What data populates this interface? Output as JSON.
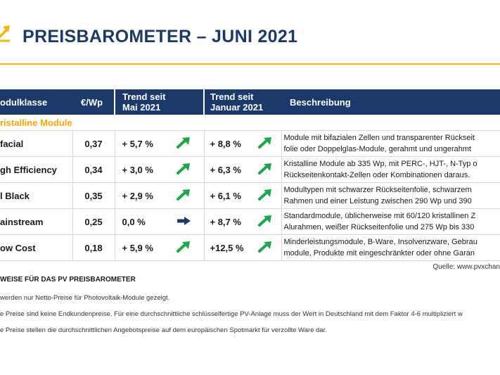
{
  "header": {
    "title": "PREISBAROMETER –  JUNI 2021"
  },
  "table": {
    "columns": {
      "module": "odulklasse",
      "price": "€/Wp",
      "trend_may": "Trend seit\nMai 2021",
      "trend_jan": "Trend seit\nJanuar 2021",
      "desc": "Beschreibung"
    },
    "group_label": "ristalline Module",
    "rows": [
      {
        "name": "facial",
        "price": "0,37",
        "may": "+ 5,7 %",
        "may_dir": "up",
        "jan": "+ 8,8 %",
        "jan_dir": "up",
        "desc": [
          "Module mit bifazialen Zellen und transparenter Rückseit",
          "folie oder Doppelglas-Module, gerahmt und ungerahmt"
        ]
      },
      {
        "name": "gh Efficiency",
        "price": "0,34",
        "may": "+ 3,0 %",
        "may_dir": "up",
        "jan": "+ 6,3 %",
        "jan_dir": "up",
        "desc": [
          "Kristalline Module ab 335 Wp, mit PERC-, HJT-, N-Typ o",
          "Rückseitenkontakt-Zellen oder Kombinationen daraus."
        ]
      },
      {
        "name": "l Black",
        "price": "0,35",
        "may": "+ 2,9 %",
        "may_dir": "up",
        "jan": "+ 6,1 %",
        "jan_dir": "up",
        "desc": [
          "Modultypen mit schwarzer Rückseitenfolie, schwarzem",
          "Rahmen und einer Leistung  zwischen 290 Wp und 390"
        ]
      },
      {
        "name": "ainstream",
        "price": "0,25",
        "may": "0,0 %",
        "may_dir": "flat",
        "jan": "+ 8,7 %",
        "jan_dir": "up",
        "desc": [
          "Standardmodule, üblicherweise mit 60/120 kristallinen Z",
          "Alurahmen, weißer Rückseitenfolie und 275 Wp bis 330"
        ]
      },
      {
        "name": "ow Cost",
        "price": "0,18",
        "may": "+ 5,9 %",
        "may_dir": "up",
        "jan": "+12,5 %",
        "jan_dir": "up",
        "desc": [
          "Minderleistungsmodule, B-Ware, Insolvenzware, Gebrau",
          "module, Produkte mit eingeschränkter oder ohne Garan"
        ]
      }
    ]
  },
  "source": "Quelle: www.pvxchan",
  "notes": {
    "title": "WEISE FÜR DAS PV PREISBAROMETER",
    "items": [
      "werden nur Netto-Preise für Photovoltaik-Module gezeigt.",
      "e Preise sind keine Endkundenpreise. Für eine durchschnittliche schlüsselfertige PV-Anlage muss der Wert in Deutschland mit dem Faktor 4-6 multipliziert w",
      "e Preise stellen die durchschnittlichen Angebotspreise auf dem europäischen Spotmarkt für verzollte Ware dar."
    ]
  },
  "colors": {
    "navy": "#1b3a6b",
    "accent": "#f5b800",
    "trend_up": "#1aa84a",
    "trend_flat": "#1b3a6b"
  },
  "icons": {
    "logo": "trend-arrow-logo-icon",
    "up": "arrow-up-right-icon",
    "flat": "arrow-right-icon"
  }
}
